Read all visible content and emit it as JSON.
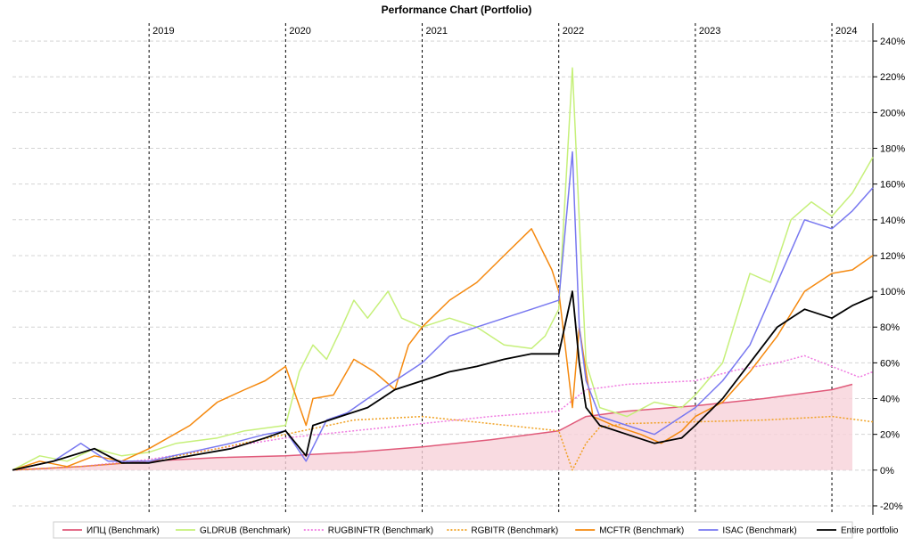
{
  "chart_data": {
    "type": "line",
    "title": "Performance Chart (Portfolio)",
    "xlabel": "",
    "ylabel": "",
    "xlim": [
      2018.0,
      2024.3
    ],
    "ylim": [
      -0.25,
      2.5
    ],
    "y_ticks": [
      -0.2,
      0,
      0.2,
      0.4,
      0.6,
      0.8,
      1.0,
      1.2,
      1.4,
      1.6,
      1.8,
      2.0,
      2.2,
      2.4
    ],
    "y_tick_labels": [
      "-20%",
      "0%",
      "20%",
      "40%",
      "60%",
      "80%",
      "100%",
      "120%",
      "140%",
      "160%",
      "180%",
      "200%",
      "220%",
      "240%"
    ],
    "year_markers": [
      {
        "x": 2019.0,
        "label": "2019"
      },
      {
        "x": 2020.0,
        "label": "2020"
      },
      {
        "x": 2021.0,
        "label": "2021"
      },
      {
        "x": 2022.0,
        "label": "2022"
      },
      {
        "x": 2023.0,
        "label": "2023"
      },
      {
        "x": 2024.0,
        "label": "2024"
      }
    ],
    "grid": true,
    "legend_position": "bottom",
    "series": [
      {
        "name": "ИПЦ (Benchmark)",
        "color": "#e05a7a",
        "style": "solid",
        "fill": "#f7d2da",
        "x": [
          2018.0,
          2018.5,
          2019.0,
          2019.5,
          2020.0,
          2020.5,
          2021.0,
          2021.5,
          2022.0,
          2022.2,
          2022.5,
          2023.0,
          2023.5,
          2024.0,
          2024.15
        ],
        "y": [
          0.0,
          0.02,
          0.05,
          0.07,
          0.08,
          0.1,
          0.13,
          0.17,
          0.22,
          0.3,
          0.33,
          0.36,
          0.4,
          0.45,
          0.48
        ]
      },
      {
        "name": "GLDRUB (Benchmark)",
        "color": "#c6f07a",
        "style": "solid",
        "x": [
          2018.0,
          2018.2,
          2018.4,
          2018.6,
          2018.8,
          2019.0,
          2019.2,
          2019.5,
          2019.7,
          2019.9,
          2020.0,
          2020.1,
          2020.2,
          2020.3,
          2020.4,
          2020.5,
          2020.6,
          2020.75,
          2020.85,
          2021.0,
          2021.2,
          2021.4,
          2021.6,
          2021.8,
          2021.9,
          2022.0,
          2022.1,
          2022.15,
          2022.2,
          2022.3,
          2022.5,
          2022.7,
          2022.9,
          2023.0,
          2023.2,
          2023.4,
          2023.55,
          2023.7,
          2023.85,
          2024.0,
          2024.15,
          2024.3
        ],
        "y": [
          0.0,
          0.08,
          0.05,
          0.12,
          0.08,
          0.1,
          0.15,
          0.18,
          0.22,
          0.24,
          0.25,
          0.55,
          0.7,
          0.62,
          0.78,
          0.95,
          0.85,
          1.0,
          0.85,
          0.8,
          0.85,
          0.8,
          0.7,
          0.68,
          0.75,
          0.9,
          2.25,
          1.4,
          0.6,
          0.35,
          0.3,
          0.38,
          0.35,
          0.42,
          0.6,
          1.1,
          1.05,
          1.4,
          1.5,
          1.42,
          1.55,
          1.75
        ]
      },
      {
        "name": "RUGBINFTR (Benchmark)",
        "color": "#f07ae0",
        "style": "dotted",
        "x": [
          2018.0,
          2018.5,
          2019.0,
          2019.5,
          2020.0,
          2020.5,
          2021.0,
          2021.5,
          2022.0,
          2022.2,
          2022.5,
          2023.0,
          2023.3,
          2023.6,
          2023.8,
          2024.0,
          2024.2,
          2024.3
        ],
        "y": [
          0.0,
          0.02,
          0.06,
          0.12,
          0.18,
          0.22,
          0.26,
          0.3,
          0.33,
          0.45,
          0.48,
          0.5,
          0.56,
          0.6,
          0.64,
          0.58,
          0.52,
          0.55
        ]
      },
      {
        "name": "RGBITR (Benchmark)",
        "color": "#f0a020",
        "style": "dotted",
        "x": [
          2018.0,
          2018.5,
          2019.0,
          2019.5,
          2020.0,
          2020.5,
          2021.0,
          2021.5,
          2022.0,
          2022.1,
          2022.2,
          2022.3,
          2022.5,
          2023.0,
          2023.5,
          2024.0,
          2024.2,
          2024.3
        ],
        "y": [
          0.0,
          0.02,
          0.05,
          0.12,
          0.2,
          0.28,
          0.3,
          0.26,
          0.22,
          0.0,
          0.15,
          0.24,
          0.26,
          0.27,
          0.28,
          0.3,
          0.28,
          0.27
        ]
      },
      {
        "name": "MCFTR (Benchmark)",
        "color": "#f5890f",
        "style": "solid",
        "x": [
          2018.0,
          2018.2,
          2018.4,
          2018.6,
          2018.8,
          2019.0,
          2019.3,
          2019.5,
          2019.7,
          2019.85,
          2020.0,
          2020.15,
          2020.2,
          2020.35,
          2020.5,
          2020.65,
          2020.8,
          2020.9,
          2021.0,
          2021.2,
          2021.4,
          2021.6,
          2021.8,
          2021.95,
          2022.0,
          2022.1,
          2022.15,
          2022.25,
          2022.4,
          2022.6,
          2022.75,
          2022.9,
          2023.0,
          2023.2,
          2023.4,
          2023.6,
          2023.8,
          2024.0,
          2024.15,
          2024.3
        ],
        "y": [
          0.0,
          0.05,
          0.02,
          0.08,
          0.05,
          0.12,
          0.25,
          0.38,
          0.45,
          0.5,
          0.58,
          0.25,
          0.4,
          0.42,
          0.62,
          0.55,
          0.45,
          0.7,
          0.8,
          0.95,
          1.05,
          1.2,
          1.35,
          1.12,
          1.0,
          0.35,
          0.8,
          0.3,
          0.25,
          0.2,
          0.15,
          0.22,
          0.3,
          0.38,
          0.55,
          0.75,
          1.0,
          1.1,
          1.12,
          1.2
        ]
      },
      {
        "name": "ISAC (Benchmark)",
        "color": "#7878f0",
        "style": "solid",
        "x": [
          2018.0,
          2018.3,
          2018.5,
          2018.7,
          2019.0,
          2019.3,
          2019.6,
          2019.85,
          2020.0,
          2020.15,
          2020.3,
          2020.45,
          2020.6,
          2020.8,
          2021.0,
          2021.2,
          2021.4,
          2021.6,
          2021.8,
          2022.0,
          2022.1,
          2022.15,
          2022.2,
          2022.3,
          2022.5,
          2022.7,
          2022.9,
          2023.0,
          2023.2,
          2023.4,
          2023.6,
          2023.8,
          2024.0,
          2024.15,
          2024.3
        ],
        "y": [
          0.0,
          0.05,
          0.15,
          0.05,
          0.05,
          0.1,
          0.15,
          0.2,
          0.22,
          0.05,
          0.28,
          0.32,
          0.4,
          0.5,
          0.6,
          0.75,
          0.8,
          0.85,
          0.9,
          0.95,
          1.78,
          0.8,
          0.5,
          0.3,
          0.25,
          0.2,
          0.3,
          0.35,
          0.5,
          0.7,
          1.05,
          1.4,
          1.35,
          1.45,
          1.58
        ]
      },
      {
        "name": "Entire portfolio",
        "color": "#000000",
        "style": "solid",
        "x": [
          2018.0,
          2018.3,
          2018.6,
          2018.8,
          2019.0,
          2019.3,
          2019.6,
          2019.85,
          2020.0,
          2020.15,
          2020.2,
          2020.4,
          2020.6,
          2020.8,
          2021.0,
          2021.2,
          2021.4,
          2021.6,
          2021.8,
          2022.0,
          2022.1,
          2022.15,
          2022.2,
          2022.3,
          2022.5,
          2022.7,
          2022.9,
          2023.0,
          2023.2,
          2023.4,
          2023.6,
          2023.8,
          2024.0,
          2024.15,
          2024.3
        ],
        "y": [
          0.0,
          0.05,
          0.12,
          0.04,
          0.04,
          0.08,
          0.12,
          0.18,
          0.22,
          0.08,
          0.25,
          0.3,
          0.35,
          0.45,
          0.5,
          0.55,
          0.58,
          0.62,
          0.65,
          0.65,
          1.0,
          0.6,
          0.35,
          0.25,
          0.2,
          0.15,
          0.18,
          0.25,
          0.4,
          0.6,
          0.8,
          0.9,
          0.85,
          0.92,
          0.97
        ]
      }
    ]
  }
}
